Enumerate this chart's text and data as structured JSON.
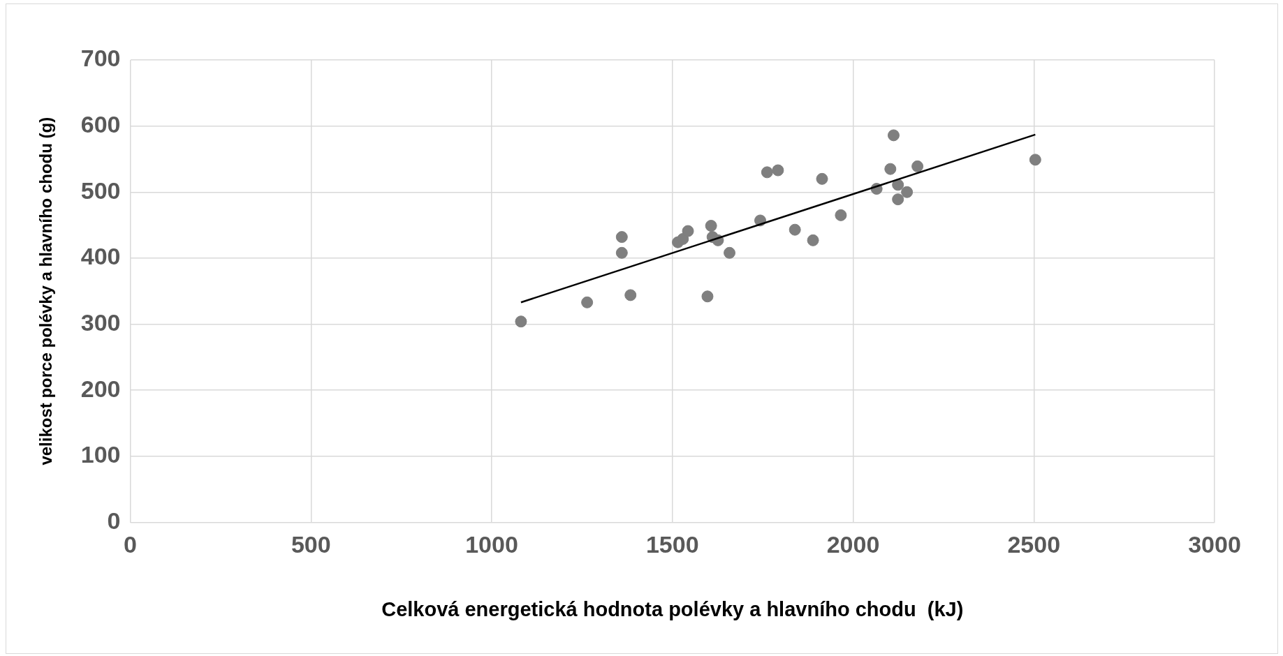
{
  "chart_data": {
    "type": "scatter",
    "xlabel": "Celková energetická hodnota polévky a hlavního chodu  (kJ)",
    "ylabel": "velikost porce polévky a hlavního chodu (g)",
    "xlim": [
      0,
      3000
    ],
    "xticks": [
      0,
      500,
      1000,
      1500,
      2000,
      2500,
      3000
    ],
    "ylim": [
      0,
      700
    ],
    "yticks": [
      0,
      100,
      200,
      300,
      400,
      500,
      600,
      700
    ],
    "grid": true,
    "legend": false,
    "series": [
      {
        "marker": "circle",
        "color": "#7f7f7f",
        "x": [
          1081,
          1264,
          1360,
          1360,
          1384,
          1515,
          1529,
          1543,
          1597,
          1607,
          1611,
          1626,
          1658,
          1743,
          1762,
          1792,
          1839,
          1889,
          1914,
          1966,
          2065,
          2103,
          2112,
          2124,
          2124,
          2149,
          2178,
          2504
        ],
        "values": [
          304,
          333,
          432,
          408,
          344,
          424,
          429,
          441,
          342,
          449,
          432,
          427,
          408,
          457,
          530,
          533,
          443,
          427,
          520,
          465,
          505,
          535,
          586,
          511,
          489,
          500,
          539,
          549
        ]
      },
      {
        "type": "line",
        "marker": "none",
        "color": "#000000",
        "x": [
          1081,
          2504
        ],
        "values": [
          333,
          587
        ]
      }
    ]
  }
}
